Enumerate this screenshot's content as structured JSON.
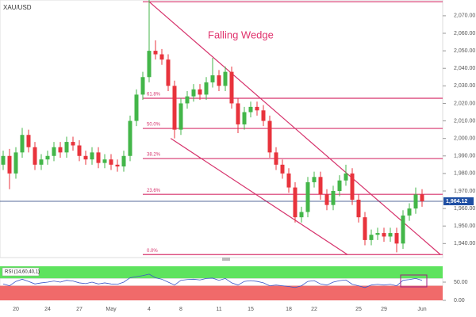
{
  "chart_data": {
    "type": "candlestick",
    "symbol": "XAU/USD",
    "annotation": "Falling Wedge",
    "categories": [
      null,
      null,
      "20",
      null,
      null,
      null,
      null,
      "24",
      null,
      null,
      null,
      null,
      "27",
      null,
      null,
      null,
      null,
      "May",
      null,
      null,
      null,
      null,
      null,
      "4",
      null,
      null,
      null,
      null,
      "8",
      null,
      null,
      null,
      null,
      null,
      "11",
      null,
      null,
      null,
      null,
      "15",
      null,
      null,
      null,
      null,
      null,
      "18",
      null,
      null,
      null,
      "22",
      null,
      null,
      null,
      null,
      null,
      null,
      "25",
      null,
      null,
      null,
      "29",
      null,
      null,
      null,
      null,
      null,
      "Jun"
    ],
    "open": [
      1985,
      1990,
      1980,
      1992,
      2002,
      1995,
      1985,
      1988,
      1990,
      1995,
      1992,
      1998,
      1996,
      1990,
      1988,
      1992,
      1986,
      1988,
      1985,
      1984,
      1990,
      2010,
      2025,
      2035,
      2050,
      2048,
      2045,
      2030,
      2005,
      2020,
      2024,
      2028,
      2025,
      2032,
      2036,
      2030,
      2038,
      2020,
      2008,
      2015,
      2018,
      2016,
      2010,
      1992,
      1985,
      1980,
      1972,
      1955,
      1958,
      1975,
      1978,
      1968,
      1962,
      1970,
      1976,
      1980,
      1965,
      1955,
      1942,
      1945,
      1946,
      1944,
      1946,
      1940,
      1956,
      1960,
      1968
    ],
    "high": [
      1993,
      1994,
      1995,
      2006,
      2005,
      1998,
      1991,
      1993,
      1998,
      1998,
      2001,
      2001,
      1999,
      1993,
      1995,
      1995,
      1991,
      1991,
      1988,
      1993,
      2013,
      2028,
      2038,
      2079,
      2056,
      2051,
      2048,
      2033,
      2023,
      2027,
      2031,
      2031,
      2035,
      2046,
      2039,
      2041,
      2041,
      2023,
      2018,
      2021,
      2021,
      2019,
      2013,
      1995,
      1988,
      1983,
      1975,
      1961,
      1978,
      1981,
      1981,
      1971,
      1973,
      1979,
      1985,
      1983,
      1968,
      1958,
      1948,
      1949,
      1949,
      1949,
      1949,
      1959,
      1963,
      1972,
      1971
    ],
    "low": [
      1982,
      1971,
      1977,
      1989,
      1992,
      1982,
      1982,
      1985,
      1987,
      1989,
      1989,
      1993,
      1987,
      1985,
      1985,
      1983,
      1983,
      1982,
      1981,
      1981,
      1987,
      2007,
      2022,
      2032,
      2045,
      2042,
      2027,
      2000,
      2002,
      2017,
      2021,
      2022,
      2022,
      2029,
      2027,
      2027,
      2017,
      2003,
      2005,
      2012,
      2013,
      2007,
      1989,
      1982,
      1977,
      1969,
      1952,
      1952,
      1955,
      1972,
      1965,
      1959,
      1959,
      1967,
      1973,
      1962,
      1952,
      1939,
      1939,
      1942,
      1941,
      1941,
      1935,
      1937,
      1953,
      1957,
      1961
    ],
    "close": [
      1990,
      1980,
      1992,
      2002,
      1995,
      1985,
      1988,
      1990,
      1995,
      1992,
      1998,
      1996,
      1990,
      1988,
      1992,
      1986,
      1988,
      1985,
      1984,
      1990,
      2010,
      2025,
      2035,
      2050,
      2048,
      2045,
      2030,
      2005,
      2020,
      2024,
      2028,
      2025,
      2032,
      2036,
      2030,
      2038,
      2020,
      2008,
      2015,
      2018,
      2016,
      2010,
      1992,
      1985,
      1980,
      1972,
      1955,
      1958,
      1975,
      1978,
      1968,
      1962,
      1970,
      1976,
      1980,
      1965,
      1955,
      1942,
      1945,
      1946,
      1944,
      1946,
      1940,
      1956,
      1960,
      1968,
      1964.12
    ],
    "up_color": "#43b649",
    "down_color": "#e8333c",
    "ylim": [
      1932,
      2079
    ],
    "yticks": [
      {
        "value": 1940,
        "label": "1,940.00"
      },
      {
        "value": 1950,
        "label": "1,950.00"
      },
      {
        "value": 1960,
        "label": "1,960.00"
      },
      {
        "value": 1970,
        "label": "1,970.00"
      },
      {
        "value": 1980,
        "label": "1,980.00"
      },
      {
        "value": 1990,
        "label": "1,990.00"
      },
      {
        "value": 2000,
        "label": "2,000.00"
      },
      {
        "value": 2010,
        "label": "2,010.00"
      },
      {
        "value": 2020,
        "label": "2,020.00"
      },
      {
        "value": 2030,
        "label": "2,030.00"
      },
      {
        "value": 2040,
        "label": "2,040.00"
      },
      {
        "value": 2050,
        "label": "2,050.00"
      },
      {
        "value": 2060,
        "label": "2,060.00"
      },
      {
        "value": 2070,
        "label": "2,070.00"
      }
    ],
    "last_price": {
      "value": 1964.12,
      "label": "1,964.12"
    },
    "fib_color": "#d6336c",
    "fib_levels": [
      {
        "value": 1933.7,
        "label": "0.0%"
      },
      {
        "value": 1968.1,
        "label": "23.6%"
      },
      {
        "value": 1988.5,
        "label": "38.2%"
      },
      {
        "value": 2005.7,
        "label": "50.0%"
      },
      {
        "value": 2022.9,
        "label": "61.8%"
      },
      {
        "value": 2078
      }
    ],
    "trendlines": [
      {
        "x": [
          23,
          68.9
        ],
        "y": [
          2078,
          1933.7
        ]
      },
      {
        "x": [
          26.4,
          54.25
        ],
        "y": [
          2000,
          1933.7
        ]
      }
    ],
    "rsi": {
      "label": "RSI (14,60,40,1)",
      "color": "#3a55c8",
      "ylim": [
        0,
        100
      ],
      "upper": 60,
      "lower": 40,
      "yticks": [
        {
          "value": 50,
          "label": "50.00"
        },
        {
          "value": 0,
          "label": "0.00"
        }
      ],
      "values": [
        45,
        40,
        52,
        58,
        52,
        45,
        48,
        50,
        53,
        50,
        55,
        53,
        48,
        46,
        50,
        45,
        48,
        45,
        44,
        50,
        62,
        65,
        68,
        72,
        62,
        58,
        50,
        42,
        55,
        57,
        58,
        56,
        60,
        61,
        55,
        60,
        48,
        42,
        52,
        54,
        52,
        48,
        40,
        42,
        40,
        38,
        35,
        40,
        52,
        54,
        45,
        42,
        50,
        54,
        56,
        44,
        40,
        35,
        42,
        44,
        42,
        44,
        40,
        55,
        57,
        60,
        55
      ]
    }
  }
}
